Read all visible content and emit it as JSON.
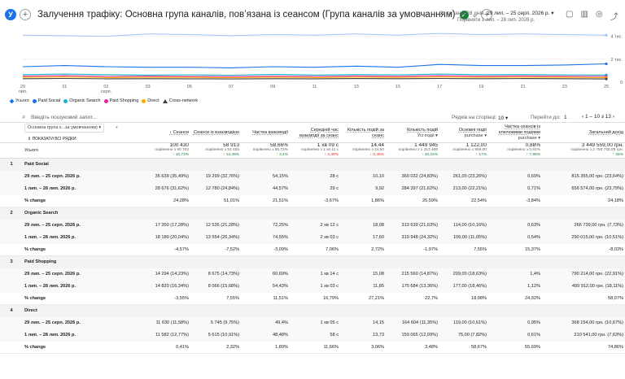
{
  "header": {
    "avatar_letter": "У",
    "title": "Залучення трафіку: Основна група каналів, пов’язана із сеансом (Група каналів за умовчанням)",
    "date_prefix": "За останні 28 днів",
    "date_range": "29 лип. – 25 серп. 2026 р.",
    "date_compare": "Порівняти 1 лип. – 28 лип. 2026 р."
  },
  "chart": {
    "right_axis_labels": [
      "4 тис.",
      "2 тис.",
      "0"
    ],
    "x_labels": [
      "29\nлип.",
      "31",
      "02\nсерп.",
      "03",
      "05",
      "07",
      "09",
      "11",
      "13",
      "15",
      "17",
      "19",
      "21",
      "23",
      "25"
    ],
    "legend": [
      {
        "label": "Усього",
        "color": "#1a73e8",
        "shape": "diamond"
      },
      {
        "label": "Paid Social",
        "color": "#1a73e8",
        "shape": "dot"
      },
      {
        "label": "Organic Search",
        "color": "#12b5cb",
        "shape": "dot"
      },
      {
        "label": "Paid Shopping",
        "color": "#e52592",
        "shape": "dot"
      },
      {
        "label": "Direct",
        "color": "#f9ab00",
        "shape": "dot"
      },
      {
        "label": "Cross-network",
        "color": "#3c4043",
        "shape": "triangle"
      }
    ]
  },
  "chart_data": {
    "type": "line",
    "x": [
      "29 лип.",
      "31",
      "02 серп.",
      "03",
      "05",
      "07",
      "09",
      "11",
      "13",
      "15",
      "17",
      "19",
      "21",
      "23",
      "25"
    ],
    "ylim": [
      0,
      4400
    ],
    "series": [
      {
        "name": "Усього",
        "color": "#9fc5f8",
        "values": [
          4100,
          4050,
          4000,
          4200,
          4150,
          4050,
          4150,
          4100,
          4200,
          4100,
          4250,
          4150,
          4200,
          4150,
          4100
        ]
      },
      {
        "name": "Paid Social",
        "color": "#1a73e8",
        "values": [
          1350,
          1450,
          1350,
          1300,
          1300,
          1250,
          1350,
          1300,
          1400,
          1300,
          1550,
          1450,
          1450,
          1500,
          1600
        ]
      },
      {
        "name": "Organic Search",
        "color": "#12b5cb",
        "values": [
          650,
          700,
          650,
          620,
          640,
          600,
          680,
          620,
          660,
          640,
          700,
          650,
          660,
          640,
          620
        ]
      },
      {
        "name": "Paid Shopping",
        "color": "#e52592",
        "values": [
          520,
          560,
          500,
          520,
          500,
          480,
          520,
          500,
          540,
          510,
          560,
          520,
          540,
          520,
          500
        ]
      },
      {
        "name": "Direct",
        "color": "#f9ab00",
        "values": [
          420,
          450,
          400,
          410,
          420,
          390,
          420,
          400,
          430,
          410,
          450,
          420,
          430,
          410,
          390
        ]
      },
      {
        "name": "Cross-network",
        "color": "#3c4043",
        "values": [
          300,
          320,
          290,
          300,
          290,
          280,
          300,
          290,
          310,
          300,
          320,
          300,
          310,
          300,
          280
        ]
      }
    ]
  },
  "toolbar": {
    "search_placeholder": "Введіть пошуковий запит...",
    "rows_per_page_label": "Рядків на сторінці:",
    "rows_per_page_value": "10",
    "goto_label": "Перейти до:",
    "goto_value": "1",
    "pagination": "1 – 10 з 13"
  },
  "table": {
    "dim_select": "Основна група к...за умовчанням)",
    "show_all_rows": "ПОКАЗАТИ ВСІ РЯДКИ",
    "columns": [
      {
        "label": "Сеанси",
        "sort": "↓"
      },
      {
        "label": "Сеанси із взаємодією"
      },
      {
        "label": "Частка взаємодії"
      },
      {
        "label": "Середній час взаємодії за сеанс"
      },
      {
        "label": "Кількість подій за сеанс"
      },
      {
        "label": "Кількість подій",
        "sub": "Усі події"
      },
      {
        "label": "Основні події",
        "sub": "purchase"
      },
      {
        "label": "Частка сеансів із ключовими подіями",
        "sub": "purchase"
      },
      {
        "label": "Загальний дохід"
      }
    ],
    "totals": {
      "label": "Усього",
      "values": [
        "100 430",
        "58 913",
        "58,66%",
        "1 хв 09 с",
        "14,44",
        "1 449 945",
        "1 122,00",
        "0,88%",
        "3 449 559,00 грн."
      ],
      "compare": [
        "порівняно з 90 702",
        "порівняно з 51 455",
        "порівняно з 56,73%",
        "порівняно з 1 хв 11 с",
        "порівняно з 14,50",
        "порівняно з 1 313 466",
        "порівняно з 959,00",
        "порівняно з 0,81%",
        "порівняно з 2 759 745,08 грн."
      ],
      "deltas": [
        "↑ 10,73%",
        "↑ 14,49%",
        "↑ 3,4%",
        "↓ 2,49%",
        "↓ 0,45%",
        "↑ 10,22%",
        "↑ 17%",
        "↑ 7,98%",
        "↑ 25%"
      ],
      "delta_dir": [
        "up",
        "up",
        "up",
        "down",
        "down",
        "up",
        "up",
        "up",
        "up"
      ]
    },
    "groups": [
      {
        "idx": "1",
        "name": "Paid Social",
        "rows": [
          {
            "label": "29 лип. – 25 серп. 2026 р.",
            "values": [
              "35 639 (35,49%)",
              "19 299 (32,76%)",
              "54,15%",
              "28 с",
              "10,10",
              "360 032 (24,83%)",
              "261,00 (23,26%)",
              "0,69%",
              "815 355,00 грн. (23,64%)"
            ]
          },
          {
            "label": "1 лип. – 28 лип. 2026 р.",
            "values": [
              "28 676 (31,62%)",
              "12 780 (24,84%)",
              "44,57%",
              "29 с",
              "9,92",
              "284 397 (21,62%)",
              "213,00 (22,21%)",
              "0,71%",
              "656 574,00 грн. (23,79%)"
            ]
          }
        ],
        "change": [
          "24,28%",
          "51,01%",
          "21,51%",
          "-3,67%",
          "1,86%",
          "26,59%",
          "22,54%",
          "-3,84%",
          "24,18%"
        ]
      },
      {
        "idx": "2",
        "name": "Organic Search",
        "rows": [
          {
            "label": "29 лип. – 25 серп. 2026 р.",
            "values": [
              "17 350 (17,28%)",
              "12 535 (21,28%)",
              "72,25%",
              "2 хв 12 с",
              "18,08",
              "313 639 (21,63%)",
              "114,00 (10,16%)",
              "0,63%",
              "266 739,00 грн. (7,73%)"
            ]
          },
          {
            "label": "1 лип. – 28 лип. 2026 р.",
            "values": [
              "18 180 (20,04%)",
              "13 554 (26,34%)",
              "74,55%",
              "2 хв 03 с",
              "17,60",
              "319 948 (24,32%)",
              "106,00 (11,05%)",
              "0,54%",
              "290 015,00 грн. (10,51%)"
            ]
          }
        ],
        "change": [
          "-4,57%",
          "-7,52%",
          "-3,09%",
          "7,06%",
          "2,72%",
          "-1,97%",
          "7,55%",
          "15,37%",
          "-8,03%"
        ]
      },
      {
        "idx": "3",
        "name": "Paid Shopping",
        "rows": [
          {
            "label": "29 лип. – 25 серп. 2026 р.",
            "values": [
              "14 294 (14,23%)",
              "8 675 (14,73%)",
              "60,69%",
              "1 хв 14 с",
              "15,08",
              "215 560 (14,87%)",
              "209,00 (18,63%)",
              "1,4%",
              "790 214,00 грн. (22,91%)"
            ]
          },
          {
            "label": "1 лип. – 28 лип. 2026 р.",
            "values": [
              "14 820 (16,34%)",
              "8 066 (15,68%)",
              "54,43%",
              "1 хв 03 с",
              "11,85",
              "175 684 (13,36%)",
              "177,00 (18,46%)",
              "1,12%",
              "499 912,00 грн. (18,11%)"
            ]
          }
        ],
        "change": [
          "-3,55%",
          "7,55%",
          "11,51%",
          "16,79%",
          "27,21%",
          "22,7%",
          "18,08%",
          "24,92%",
          "58,07%"
        ]
      },
      {
        "idx": "4",
        "name": "Direct",
        "rows": [
          {
            "label": "29 лип. – 25 серп. 2026 р.",
            "values": [
              "11 630 (11,58%)",
              "5 745 (9,75%)",
              "49,4%",
              "1 хв 05 с",
              "14,15",
              "164 604 (11,35%)",
              "119,00 (10,61%)",
              "0,95%",
              "368 154,00 грн. (10,67%)"
            ]
          },
          {
            "label": "1 лип. – 28 лип. 2026 р.",
            "values": [
              "11 582 (12,77%)",
              "5 615 (10,91%)",
              "48,48%",
              "58 с",
              "13,73",
              "159 065 (12,09%)",
              "75,00 (7,82%)",
              "0,61%",
              "210 541,00 грн. (7,63%)"
            ]
          }
        ],
        "change": [
          "0,41%",
          "2,32%",
          "1,89%",
          "11,66%",
          "3,06%",
          "3,48%",
          "58,67%",
          "55,69%",
          "74,86%"
        ]
      }
    ],
    "change_label": "% change"
  }
}
